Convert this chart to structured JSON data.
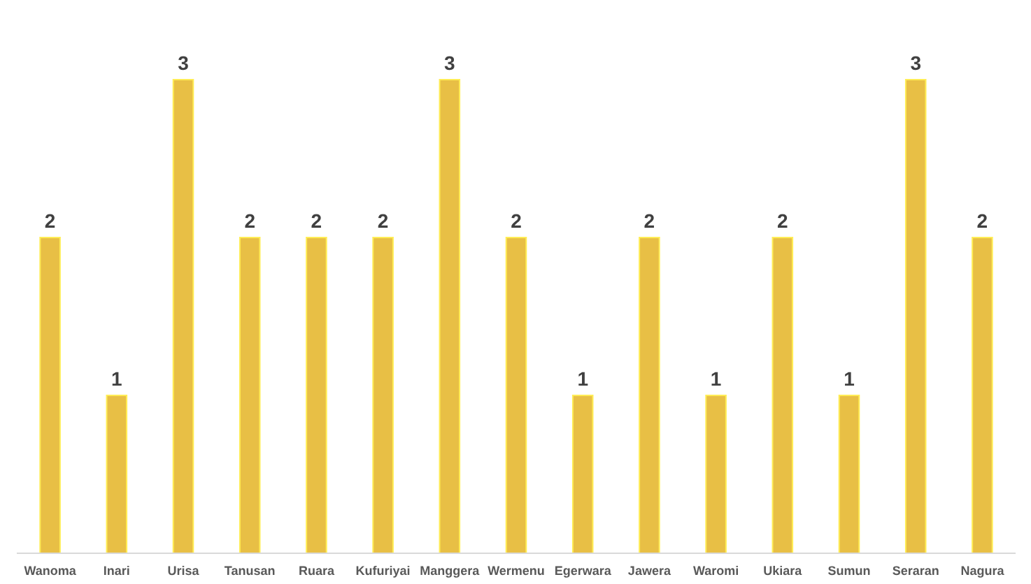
{
  "chart_data": {
    "type": "bar",
    "categories": [
      "Wanoma",
      "Inari",
      "Urisa",
      "Tanusan",
      "Ruara",
      "Kufuriyai",
      "Manggera",
      "Wermenu",
      "Egerwara",
      "Jawera",
      "Waromi",
      "Ukiara",
      "Sumun",
      "Seraran",
      "Nagura"
    ],
    "values": [
      2,
      1,
      3,
      2,
      2,
      2,
      3,
      2,
      1,
      2,
      1,
      2,
      1,
      3,
      2
    ],
    "color": "#e8bf45",
    "ylim": [
      0,
      3
    ],
    "tick_labels": "x",
    "data_labels": true
  }
}
